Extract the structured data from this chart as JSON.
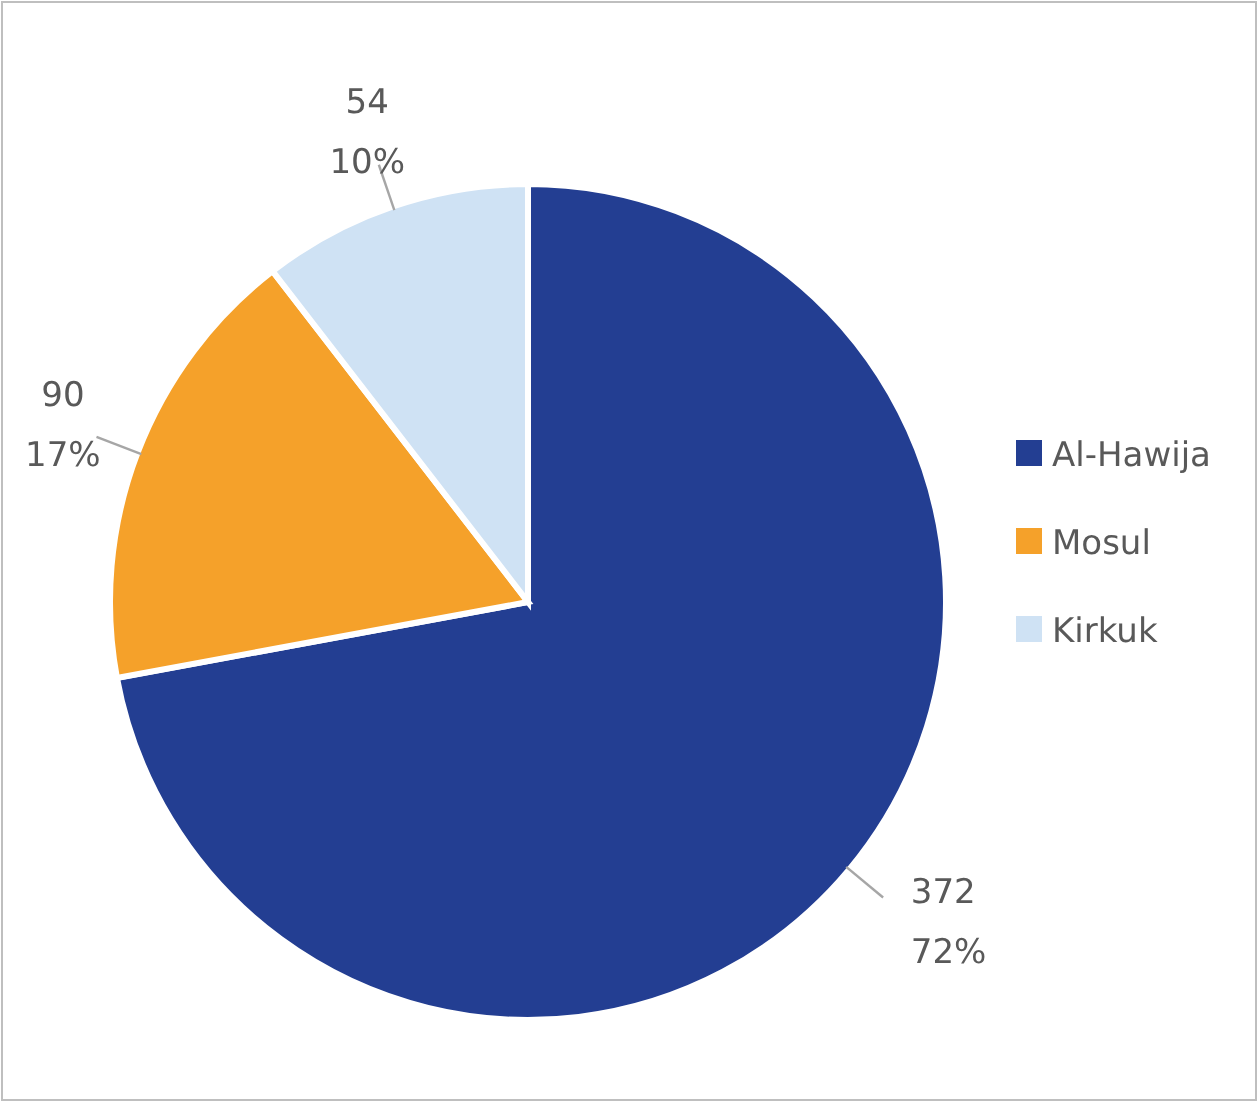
{
  "chart_data": {
    "type": "pie",
    "categories": [
      "Al-Hawija",
      "Mosul",
      "Kirkuk"
    ],
    "values": [
      372,
      90,
      54
    ],
    "colors": [
      "#233e92",
      "#f5a12a",
      "#cfe2f4"
    ],
    "value_labels": [
      "372 72%",
      "90 17%",
      "54 10%"
    ],
    "legend": "right"
  }
}
